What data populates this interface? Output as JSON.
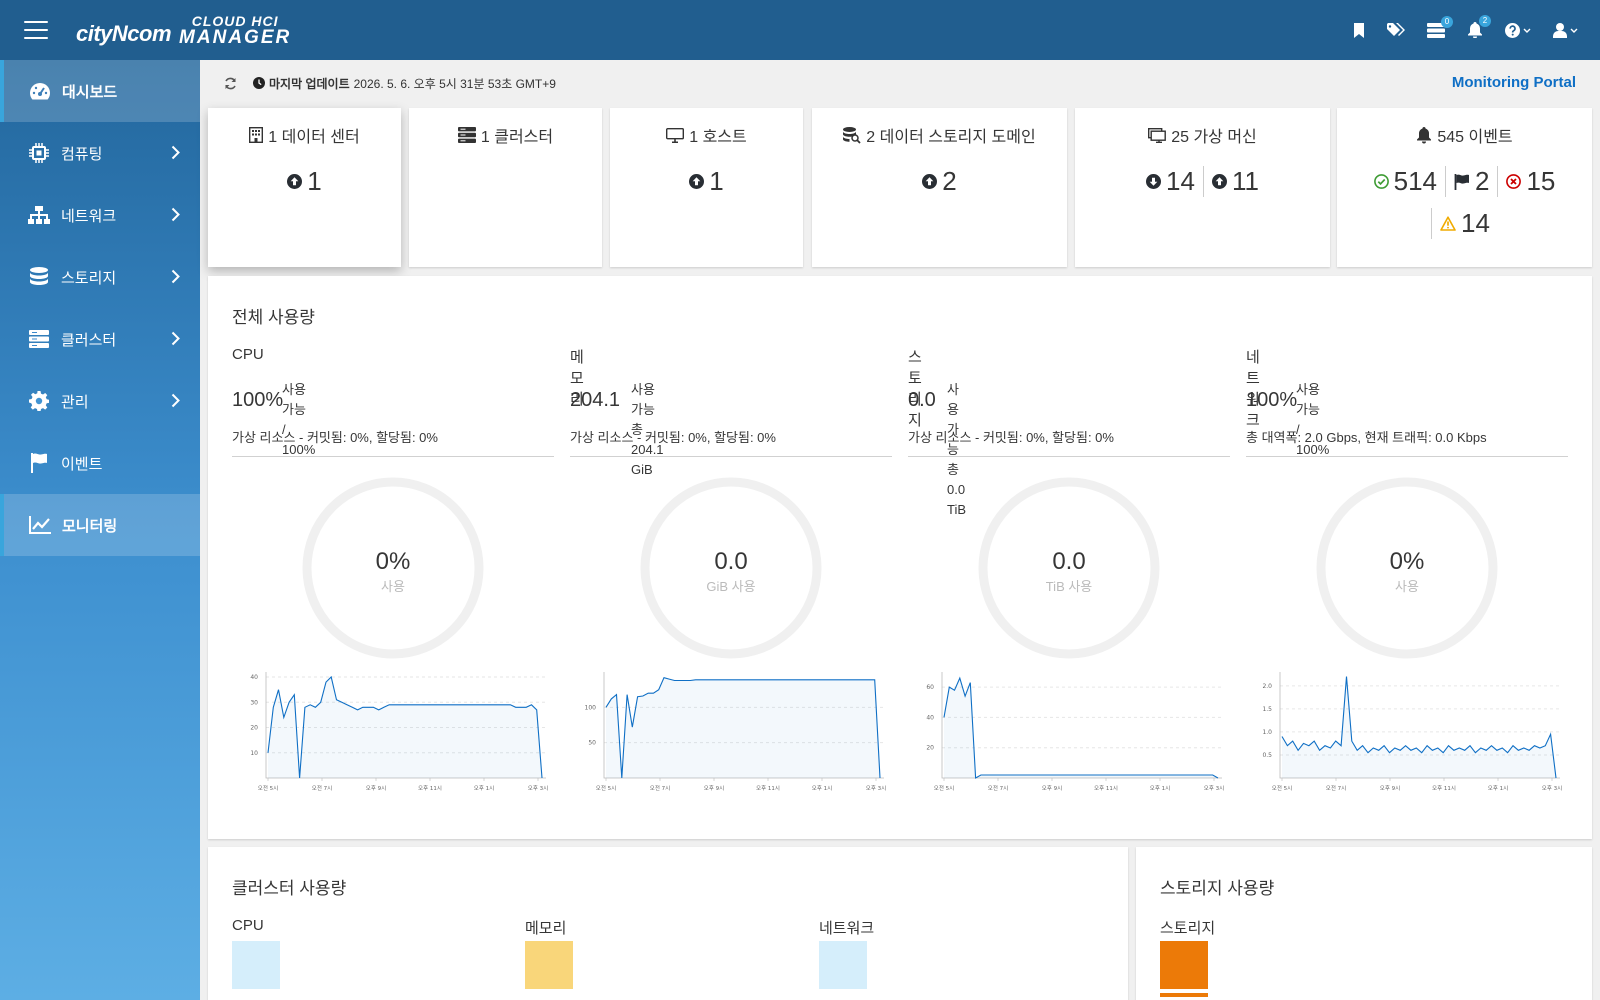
{
  "header": {
    "logo_brand": "cityNcom",
    "logo_product_line1": "CLOUD HCI",
    "logo_product_line2": "MANAGER",
    "icons": [
      {
        "name": "bookmark-icon"
      },
      {
        "name": "tags-icon"
      },
      {
        "name": "tasks-icon",
        "badge": "0"
      },
      {
        "name": "bell-icon",
        "badge": "2"
      },
      {
        "name": "help-icon"
      },
      {
        "name": "user-icon"
      }
    ]
  },
  "sidebar": {
    "items": [
      {
        "label": "대시보드",
        "icon": "dashboard-icon",
        "active": true
      },
      {
        "label": "컴퓨팅",
        "icon": "chip-icon",
        "expandable": true
      },
      {
        "label": "네트워크",
        "icon": "network-icon",
        "expandable": true
      },
      {
        "label": "스토리지",
        "icon": "database-icon",
        "expandable": true
      },
      {
        "label": "클러스터",
        "icon": "server-icon",
        "expandable": true
      },
      {
        "label": "관리",
        "icon": "gear-icon",
        "expandable": true
      },
      {
        "label": "이벤트",
        "icon": "flag-icon"
      },
      {
        "label": "모니터링",
        "icon": "line-chart-icon",
        "active": true
      }
    ]
  },
  "update_bar": {
    "label": "마지막 업데이트",
    "value": "2026. 5. 6. 오후 5시 31분 53초 GMT+9",
    "portal_link": "Monitoring Portal"
  },
  "summary_cards": {
    "datacenter": {
      "title": "1 데이터 센터",
      "up": "1"
    },
    "cluster": {
      "title": "1 클러스터"
    },
    "host": {
      "title": "1 호스트",
      "up": "1"
    },
    "storage_domain": {
      "title": "2 데이터 스토리지 도메인",
      "up": "2"
    },
    "vm": {
      "title": "25 가상 머신",
      "down": "14",
      "up": "11"
    },
    "events": {
      "title": "545 이벤트",
      "ok": "514",
      "flag": "2",
      "error": "15",
      "warning": "14"
    }
  },
  "total_usage": {
    "title": "전체 사용량",
    "columns": [
      {
        "name": "CPU",
        "big": "100%",
        "avail_label": "사용 가능",
        "avail_total": "/ 100%",
        "sub": "가상 리소스 - 커밋됨: 0%, 할당됨: 0%",
        "donut_value": "0%",
        "donut_unit": "사용"
      },
      {
        "name": "메모리",
        "big": "204.1",
        "avail_label": "사용 가능",
        "avail_total": "총 204.1 GiB",
        "sub": "가상 리소스 - 커밋됨: 0%, 할당됨: 0%",
        "donut_value": "0.0",
        "donut_unit": "GiB 사용"
      },
      {
        "name": "스토리지",
        "big": "0.0",
        "avail_label": "사용 가능",
        "avail_total": "총 0.0 TiB",
        "sub": "가상 리소스 - 커밋됨: 0%, 할당됨: 0%",
        "donut_value": "0.0",
        "donut_unit": "TiB 사용"
      },
      {
        "name": "네트워크",
        "big": "100%",
        "avail_label": "사용 가능",
        "avail_total": "/ 100%",
        "sub": "총 대역폭: 2.0 Gbps, 현재 트래픽: 0.0 Kbps",
        "donut_value": "0%",
        "donut_unit": "사용"
      }
    ]
  },
  "cluster_usage": {
    "title": "클러스터 사용량",
    "items": [
      {
        "name": "CPU",
        "color": "#d5eefb"
      },
      {
        "name": "메모리",
        "color": "#f9d67a"
      },
      {
        "name": "네트워크",
        "color": "#d5eefb"
      }
    ]
  },
  "storage_usage": {
    "title": "스토리지 사용량",
    "items": [
      {
        "name": "스토리지",
        "color": "#ec7a08"
      }
    ]
  },
  "colors": {
    "header": "#215e8f",
    "accent": "#39a5dc",
    "link": "#0f6fc5",
    "spark_line": "#0f6fc5"
  },
  "chart_data": [
    {
      "type": "area",
      "title": "",
      "yticks": [
        "10",
        "20",
        "30",
        "40"
      ],
      "ylim": [
        0,
        42
      ],
      "xticks": [
        "오전 5시",
        "오전 7시",
        "오후 9시",
        "오후 11시",
        "오후 1시",
        "오후 3시"
      ],
      "values": [
        10,
        28,
        35,
        24,
        30,
        33,
        0,
        28,
        29,
        28,
        30,
        38,
        40,
        31,
        30,
        29,
        28,
        27,
        28,
        28,
        28,
        27,
        28,
        29,
        29,
        29,
        29,
        29,
        29,
        29,
        29,
        29,
        29,
        29,
        29,
        29,
        29,
        29,
        29,
        29,
        29,
        29,
        29,
        29,
        29,
        29,
        29,
        28,
        28,
        28,
        29,
        27,
        0
      ]
    },
    {
      "type": "area",
      "title": "",
      "yticks": [
        "50",
        "100"
      ],
      "ylim": [
        0,
        150
      ],
      "xticks": [
        "오전 5시",
        "오전 7시",
        "오후 9시",
        "오후 11시",
        "오후 1시",
        "오후 3시"
      ],
      "values": [
        100,
        112,
        118,
        0,
        118,
        72,
        115,
        116,
        120,
        120,
        125,
        142,
        140,
        138,
        138,
        138,
        138,
        139,
        139,
        139,
        139,
        139,
        139,
        139,
        139,
        139,
        139,
        139,
        139,
        139,
        139,
        139,
        139,
        139,
        139,
        139,
        139,
        139,
        139,
        139,
        139,
        139,
        139,
        139,
        139,
        139,
        139,
        139,
        139,
        139,
        139,
        139,
        0
      ]
    },
    {
      "type": "area",
      "title": "",
      "yticks": [
        "20",
        "40",
        "60"
      ],
      "ylim": [
        0,
        70
      ],
      "xticks": [
        "오전 5시",
        "오전 7시",
        "오후 9시",
        "오후 11시",
        "오후 1시",
        "오후 3시"
      ],
      "values": [
        40,
        60,
        58,
        66,
        54,
        63,
        0,
        2,
        2,
        2,
        2,
        2,
        2,
        2,
        2,
        2,
        2,
        2,
        2,
        2,
        2,
        2,
        2,
        2,
        2,
        2,
        2,
        2,
        2,
        2,
        2,
        2,
        2,
        2,
        2,
        2,
        2,
        2,
        2,
        2,
        2,
        2,
        2,
        2,
        2,
        2,
        2,
        2,
        2,
        2,
        2,
        2,
        0
      ]
    },
    {
      "type": "area",
      "title": "",
      "yticks": [
        "0.5",
        "1.0",
        "1.5",
        "2.0"
      ],
      "ylim": [
        0,
        2.3
      ],
      "xticks": [
        "오전 5시",
        "오전 7시",
        "오후 9시",
        "오후 11시",
        "오후 1시",
        "오후 3시"
      ],
      "values": [
        0.9,
        0.7,
        0.8,
        0.6,
        0.75,
        0.7,
        0.8,
        0.6,
        0.7,
        0.65,
        0.8,
        0.7,
        2.2,
        0.8,
        0.6,
        0.7,
        0.55,
        0.65,
        0.6,
        0.7,
        0.55,
        0.65,
        0.6,
        0.7,
        0.6,
        0.65,
        0.55,
        0.7,
        0.6,
        0.65,
        0.55,
        0.7,
        0.6,
        0.65,
        0.6,
        0.7,
        0.55,
        0.65,
        0.6,
        0.7,
        0.6,
        0.65,
        0.55,
        0.7,
        0.6,
        0.65,
        0.6,
        0.7,
        0.65,
        0.7,
        0.95,
        0
      ]
    }
  ]
}
